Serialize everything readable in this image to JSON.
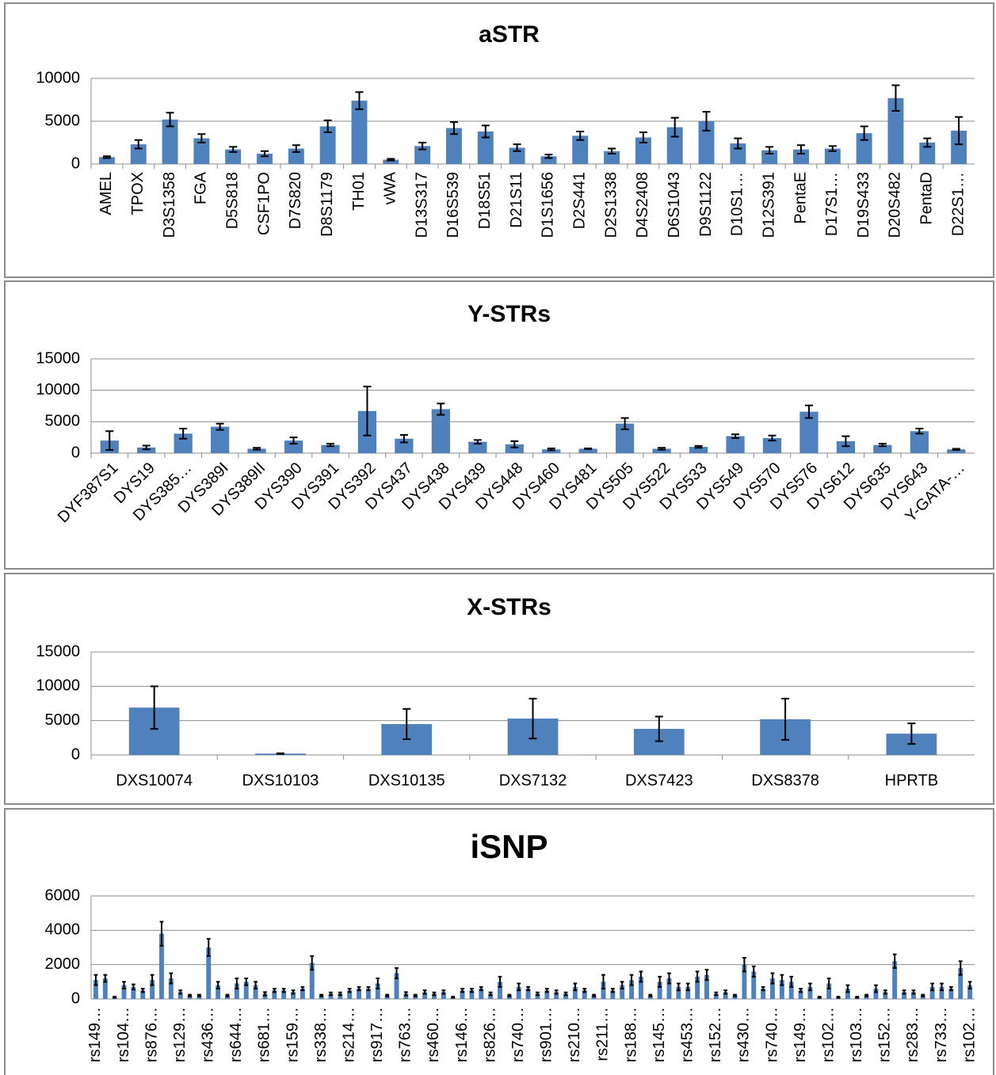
{
  "chart_data": [
    {
      "type": "bar",
      "title": "aSTR",
      "color": "#4f81bd",
      "grid": true,
      "ylim": [
        0,
        10000
      ],
      "yticks": [
        0,
        5000,
        10000
      ],
      "categories": [
        "AMEL",
        "TPOX",
        "D3S1358",
        "FGA",
        "D5S818",
        "CSF1PO",
        "D7S820",
        "D8S1179",
        "TH01",
        "vWA",
        "D13S317",
        "D16S539",
        "D18S51",
        "D21S11",
        "D1S1656",
        "D2S441",
        "D2S1338",
        "D4S2408",
        "D6S1043",
        "D9S1122",
        "D10S1…",
        "D12S391",
        "PentaE",
        "D17S1…",
        "D19S433",
        "D20S482",
        "PentaD",
        "D22S1…"
      ],
      "values": [
        800,
        2300,
        5200,
        3000,
        1700,
        1200,
        1800,
        4400,
        7400,
        500,
        2100,
        4200,
        3800,
        1900,
        900,
        3300,
        1500,
        3100,
        4300,
        5000,
        2400,
        1600,
        1700,
        1800,
        3600,
        7700,
        2500,
        3900
      ],
      "errors": [
        100,
        500,
        800,
        500,
        300,
        300,
        400,
        700,
        1000,
        100,
        400,
        700,
        700,
        400,
        200,
        500,
        300,
        600,
        1100,
        1100,
        600,
        400,
        500,
        300,
        800,
        1500,
        500,
        1600
      ]
    },
    {
      "type": "bar",
      "title": "Y-STRs",
      "color": "#4f81bd",
      "grid": true,
      "ylim": [
        0,
        15000
      ],
      "yticks": [
        0,
        5000,
        10000,
        15000
      ],
      "categories": [
        "DYF387S1",
        "DYS19",
        "DYS385…",
        "DYS389I",
        "DYS389II",
        "DYS390",
        "DYS391",
        "DYS392",
        "DYS437",
        "DYS438",
        "DYS439",
        "DYS448",
        "DYS460",
        "DYS481",
        "DYS505",
        "DYS522",
        "DYS533",
        "DYS549",
        "DYS570",
        "DYS576",
        "DYS612",
        "DYS635",
        "DYS643",
        "Y-GATA-…"
      ],
      "values": [
        2000,
        900,
        3100,
        4200,
        700,
        2000,
        1300,
        6700,
        2300,
        7000,
        1800,
        1400,
        600,
        700,
        4700,
        700,
        1000,
        2700,
        2400,
        6600,
        1900,
        1300,
        3500,
        600
      ],
      "errors": [
        1500,
        300,
        800,
        500,
        150,
        500,
        200,
        3900,
        600,
        900,
        300,
        500,
        150,
        50,
        900,
        150,
        150,
        300,
        400,
        1000,
        800,
        200,
        400,
        100
      ]
    },
    {
      "type": "bar",
      "title": "X-STRs",
      "color": "#4f81bd",
      "grid": true,
      "ylim": [
        0,
        15000
      ],
      "yticks": [
        0,
        5000,
        10000,
        15000
      ],
      "categories": [
        "DXS10074",
        "DXS10103",
        "DXS10135",
        "DXS7132",
        "DXS7423",
        "DXS8378",
        "HPRTB"
      ],
      "values": [
        6900,
        200,
        4500,
        5300,
        3800,
        5200,
        3100
      ],
      "errors": [
        3100,
        50,
        2200,
        2900,
        1800,
        3000,
        1500
      ]
    },
    {
      "type": "bar",
      "title": "iSNP",
      "color": "#4f81bd",
      "grid": true,
      "ylim": [
        0,
        6000
      ],
      "yticks": [
        0,
        2000,
        4000,
        6000
      ],
      "categories": [
        "rs149…",
        null,
        null,
        "rs104…",
        null,
        null,
        "rs876…",
        null,
        null,
        "rs129…",
        null,
        null,
        "rs436…",
        null,
        null,
        "rs644…",
        null,
        null,
        "rs681…",
        null,
        null,
        "rs159…",
        null,
        null,
        "rs338…",
        null,
        null,
        "rs214…",
        null,
        null,
        "rs917…",
        null,
        null,
        "rs763…",
        null,
        null,
        "rs460…",
        null,
        null,
        "rs146…",
        null,
        null,
        "rs826…",
        null,
        null,
        "rs740…",
        null,
        null,
        "rs901…",
        null,
        null,
        "rs210…",
        null,
        null,
        "rs211…",
        null,
        null,
        "rs188…",
        null,
        null,
        "rs145…",
        null,
        null,
        "rs453…",
        null,
        null,
        "rs152…",
        null,
        null,
        "rs430…",
        null,
        null,
        "rs740…",
        null,
        null,
        "rs149…",
        null,
        null,
        "rs102…",
        null,
        null,
        "rs103…",
        null,
        null,
        "rs152…",
        null,
        null,
        "rs283…",
        null,
        null,
        "rs733…",
        null,
        null,
        "rs102…"
      ],
      "values": [
        1100,
        1200,
        100,
        800,
        700,
        500,
        1100,
        3800,
        1200,
        400,
        200,
        200,
        3000,
        800,
        200,
        900,
        1000,
        800,
        300,
        500,
        500,
        400,
        600,
        2100,
        200,
        300,
        300,
        500,
        600,
        600,
        900,
        200,
        1500,
        300,
        200,
        400,
        300,
        400,
        100,
        500,
        500,
        600,
        300,
        1000,
        200,
        700,
        600,
        300,
        500,
        400,
        300,
        700,
        500,
        200,
        1000,
        500,
        800,
        1100,
        1300,
        200,
        1000,
        1200,
        700,
        700,
        1300,
        1400,
        300,
        400,
        200,
        2000,
        1600,
        600,
        1200,
        1100,
        1000,
        500,
        700,
        100,
        900,
        100,
        600,
        100,
        200,
        600,
        400,
        2200,
        400,
        400,
        200,
        700,
        700,
        600,
        1800,
        800
      ],
      "errors": [
        300,
        200,
        30,
        200,
        150,
        100,
        300,
        700,
        300,
        100,
        50,
        50,
        500,
        200,
        50,
        300,
        200,
        200,
        100,
        100,
        100,
        100,
        100,
        400,
        50,
        80,
        80,
        100,
        100,
        100,
        300,
        50,
        300,
        100,
        50,
        100,
        80,
        100,
        30,
        100,
        100,
        100,
        80,
        300,
        50,
        200,
        100,
        80,
        100,
        100,
        80,
        200,
        100,
        50,
        400,
        100,
        200,
        300,
        300,
        50,
        300,
        300,
        200,
        200,
        300,
        300,
        80,
        100,
        50,
        400,
        300,
        100,
        300,
        300,
        300,
        100,
        200,
        30,
        300,
        30,
        200,
        30,
        50,
        200,
        100,
        400,
        100,
        100,
        50,
        200,
        200,
        100,
        400,
        200
      ]
    }
  ]
}
